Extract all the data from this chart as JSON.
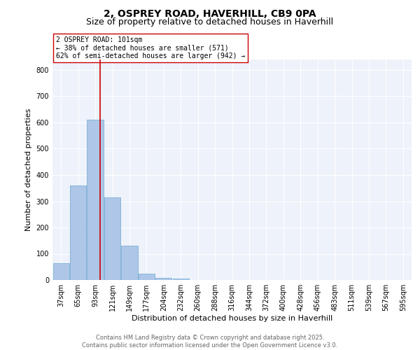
{
  "title_line1": "2, OSPREY ROAD, HAVERHILL, CB9 0PA",
  "title_line2": "Size of property relative to detached houses in Haverhill",
  "xlabel": "Distribution of detached houses by size in Haverhill",
  "ylabel": "Number of detached properties",
  "bar_labels": [
    "37sqm",
    "65sqm",
    "93sqm",
    "121sqm",
    "149sqm",
    "177sqm",
    "204sqm",
    "232sqm",
    "260sqm",
    "288sqm",
    "316sqm",
    "344sqm",
    "372sqm",
    "400sqm",
    "428sqm",
    "456sqm",
    "483sqm",
    "511sqm",
    "539sqm",
    "567sqm",
    "595sqm"
  ],
  "bar_values": [
    65,
    360,
    610,
    315,
    130,
    25,
    8,
    5,
    0,
    0,
    0,
    0,
    0,
    0,
    0,
    0,
    0,
    0,
    0,
    0,
    0
  ],
  "bar_color": "#aec6e8",
  "bar_edge_color": "#7aafd4",
  "vline_x": 2.27,
  "vline_color": "#cc0000",
  "annotation_text": "2 OSPREY ROAD: 101sqm\n← 38% of detached houses are smaller (571)\n62% of semi-detached houses are larger (942) →",
  "annotation_box_color": "#ffffff",
  "annotation_box_edge_color": "#cc0000",
  "annotation_fontsize": 7,
  "ylim": [
    0,
    840
  ],
  "yticks": [
    0,
    100,
    200,
    300,
    400,
    500,
    600,
    700,
    800
  ],
  "background_color": "#eef2fa",
  "grid_color": "#ffffff",
  "footer_text": "Contains HM Land Registry data © Crown copyright and database right 2025.\nContains public sector information licensed under the Open Government Licence v3.0.",
  "title_fontsize": 10,
  "subtitle_fontsize": 9,
  "axis_label_fontsize": 8,
  "tick_fontsize": 7,
  "footer_fontsize": 6,
  "ylabel_fontsize": 8
}
